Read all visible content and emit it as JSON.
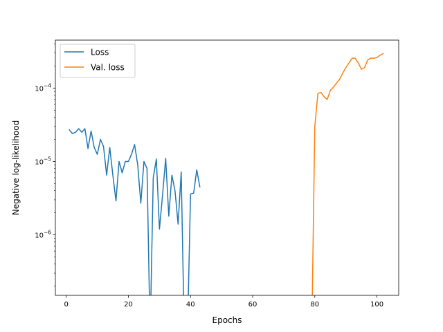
{
  "chart_data": {
    "type": "line",
    "title": "",
    "xlabel": "Epochs",
    "ylabel": "Negative log-likelihood",
    "xscale": "linear",
    "yscale": "log",
    "xlim": [
      -3.5,
      107
    ],
    "ylim": [
      1.5e-07,
      0.00045
    ],
    "xticks": [
      0,
      20,
      40,
      60,
      80,
      100
    ],
    "yticks": [
      1e-06,
      1e-05,
      0.0001
    ],
    "ytick_labels": [
      {
        "base": "10",
        "exp": "−6"
      },
      {
        "base": "10",
        "exp": "−5"
      },
      {
        "base": "10",
        "exp": "−4"
      }
    ],
    "grid": false,
    "legend_position": "top-left",
    "series": [
      {
        "name": "Loss",
        "color": "#1f77b4",
        "x": [
          1,
          2,
          3,
          4,
          5,
          6,
          7,
          8,
          9,
          10,
          11,
          12,
          13,
          14,
          15,
          16,
          17,
          18,
          19,
          20,
          21,
          22,
          23,
          24,
          25,
          26,
          27,
          28,
          29,
          30,
          31,
          32,
          33,
          34,
          35,
          36,
          37,
          38,
          39,
          40,
          41,
          42,
          43
        ],
        "y": [
          2.7e-05,
          2.4e-05,
          2.5e-05,
          2.8e-05,
          2.5e-05,
          2.8e-05,
          1.5e-05,
          2.6e-05,
          1.55e-05,
          1.25e-05,
          2e-05,
          1.6e-05,
          6.5e-06,
          1.55e-05,
          6.5e-06,
          2.9e-06,
          1e-05,
          7e-06,
          1e-05,
          1e-05,
          1.25e-05,
          1.7e-05,
          9e-06,
          2.7e-06,
          1e-05,
          8e-06,
          null,
          6e-06,
          1.08e-05,
          1.2e-06,
          3.5e-06,
          1.1e-05,
          1.8e-06,
          6.5e-06,
          4e-06,
          1.4e-06,
          7.2e-06,
          null,
          null,
          3.6e-06,
          3.7e-06,
          7.7e-06,
          4.5e-06
        ]
      },
      {
        "name": "Val. loss",
        "color": "#ff7f0e",
        "x": [
          79,
          80,
          81,
          82,
          83,
          84,
          85,
          86,
          87,
          88,
          89,
          90,
          91,
          92,
          93,
          94,
          95,
          96,
          97,
          98,
          99,
          100,
          101,
          102
        ],
        "y": [
          null,
          3e-05,
          8.5e-05,
          8.7e-05,
          7.6e-05,
          7e-05,
          9.3e-05,
          0.000103,
          0.000117,
          0.000132,
          0.00016,
          0.00019,
          0.00022,
          0.000255,
          0.000255,
          0.00022,
          0.00018,
          0.00019,
          0.00024,
          0.000255,
          0.000255,
          0.00026,
          0.00028,
          0.000295
        ]
      }
    ]
  }
}
